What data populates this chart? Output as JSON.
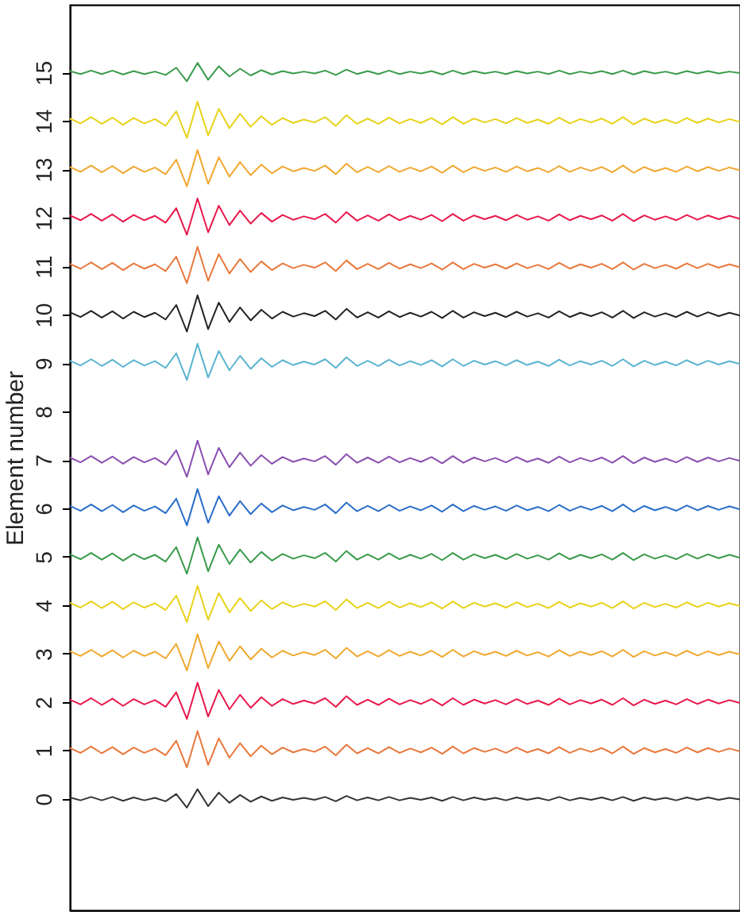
{
  "chart_data": {
    "type": "line",
    "ylabel": "Element number",
    "tick_labels": "y",
    "categories": [
      null,
      null,
      null,
      null,
      null,
      null,
      null,
      null,
      null,
      null,
      null,
      null,
      null,
      null,
      null,
      null,
      null,
      null,
      null,
      null,
      null,
      null,
      null,
      null,
      null,
      null,
      null,
      null,
      null,
      null,
      null,
      null,
      null,
      null,
      null,
      null,
      null,
      null,
      null,
      null,
      null,
      null,
      null,
      null,
      null,
      null,
      null,
      null,
      null,
      null,
      null,
      null,
      null,
      null,
      null,
      null,
      null,
      null,
      null,
      null,
      null,
      null,
      null,
      null
    ],
    "ylim": [
      -2.3,
      16.4
    ],
    "yticks": [
      0,
      1,
      2,
      3,
      4,
      5,
      6,
      7,
      8,
      9,
      10,
      11,
      12,
      13,
      14,
      15
    ],
    "series": [
      {
        "color": "#333333",
        "values": [
          0.03,
          -0.03,
          0.04,
          -0.03,
          0.04,
          -0.04,
          0.03,
          -0.03,
          0.02,
          -0.05,
          0.1,
          -0.18,
          0.2,
          -0.15,
          0.13,
          -0.08,
          0.08,
          -0.06,
          0.05,
          -0.04,
          0.03,
          -0.02,
          0.02,
          -0.02,
          0.04,
          -0.05,
          0.06,
          -0.03,
          0.03,
          -0.03,
          0.04,
          -0.03,
          0.02,
          -0.02,
          0.03,
          -0.04,
          0.04,
          -0.03,
          0.03,
          -0.02,
          0.02,
          -0.03,
          0.03,
          -0.02,
          0.02,
          -0.03,
          0.04,
          -0.03,
          0.02,
          -0.02,
          0.03,
          -0.03,
          0.04,
          -0.04,
          0.03,
          -0.02,
          0.02,
          -0.03,
          0.03,
          -0.02,
          0.03,
          -0.02,
          0.02,
          -0.01
        ]
      },
      {
        "color": "#e8783c",
        "values": [
          1.05,
          0.95,
          1.08,
          0.94,
          1.07,
          0.92,
          1.06,
          0.95,
          1.04,
          0.9,
          1.2,
          0.65,
          1.4,
          0.7,
          1.25,
          0.85,
          1.15,
          0.88,
          1.1,
          0.92,
          1.06,
          0.96,
          1.03,
          0.97,
          1.08,
          0.9,
          1.12,
          0.94,
          1.05,
          0.94,
          1.07,
          0.95,
          1.04,
          0.96,
          1.06,
          0.93,
          1.08,
          0.94,
          1.05,
          0.97,
          1.04,
          0.95,
          1.06,
          0.96,
          1.03,
          0.94,
          1.07,
          0.95,
          1.04,
          0.97,
          1.05,
          0.94,
          1.08,
          0.93,
          1.05,
          0.96,
          1.03,
          0.95,
          1.06,
          0.96,
          1.05,
          0.97,
          1.04,
          0.98
        ]
      },
      {
        "color": "#e8194b",
        "values": [
          2.05,
          1.95,
          2.08,
          1.94,
          2.07,
          1.92,
          2.06,
          1.95,
          2.04,
          1.9,
          2.2,
          1.65,
          2.4,
          1.7,
          2.25,
          1.85,
          2.15,
          1.88,
          2.1,
          1.92,
          2.06,
          1.96,
          2.03,
          1.97,
          2.08,
          1.9,
          2.12,
          1.94,
          2.05,
          1.94,
          2.07,
          1.95,
          2.04,
          1.96,
          2.06,
          1.93,
          2.08,
          1.94,
          2.05,
          1.97,
          2.04,
          1.95,
          2.06,
          1.96,
          2.03,
          1.94,
          2.07,
          1.95,
          2.04,
          1.97,
          2.05,
          1.94,
          2.08,
          1.93,
          2.05,
          1.96,
          2.03,
          1.95,
          2.06,
          1.96,
          2.05,
          1.97,
          2.04,
          1.98
        ]
      },
      {
        "color": "#f0a830",
        "values": [
          3.05,
          2.95,
          3.08,
          2.94,
          3.07,
          2.92,
          3.06,
          2.95,
          3.04,
          2.9,
          3.2,
          2.65,
          3.4,
          2.7,
          3.25,
          2.85,
          3.15,
          2.88,
          3.1,
          2.92,
          3.06,
          2.96,
          3.03,
          2.97,
          3.08,
          2.9,
          3.12,
          2.94,
          3.05,
          2.94,
          3.07,
          2.95,
          3.04,
          2.96,
          3.06,
          2.93,
          3.08,
          2.94,
          3.05,
          2.97,
          3.04,
          2.95,
          3.06,
          2.96,
          3.03,
          2.94,
          3.07,
          2.95,
          3.04,
          2.97,
          3.05,
          2.94,
          3.08,
          2.93,
          3.05,
          2.96,
          3.03,
          2.95,
          3.06,
          2.96,
          3.05,
          2.97,
          3.04,
          2.98
        ]
      },
      {
        "color": "#e8d21a",
        "values": [
          4.05,
          3.95,
          4.08,
          3.94,
          4.07,
          3.92,
          4.06,
          3.95,
          4.04,
          3.9,
          4.2,
          3.65,
          4.4,
          3.7,
          4.25,
          3.85,
          4.15,
          3.88,
          4.1,
          3.92,
          4.06,
          3.96,
          4.03,
          3.97,
          4.08,
          3.9,
          4.12,
          3.94,
          4.05,
          3.94,
          4.07,
          3.95,
          4.04,
          3.96,
          4.06,
          3.93,
          4.08,
          3.94,
          4.05,
          3.97,
          4.04,
          3.95,
          4.06,
          3.96,
          4.03,
          3.94,
          4.07,
          3.95,
          4.04,
          3.97,
          4.05,
          3.94,
          4.08,
          3.93,
          4.05,
          3.96,
          4.03,
          3.95,
          4.06,
          3.96,
          4.05,
          3.97,
          4.04,
          3.98
        ]
      },
      {
        "color": "#3a9a4a",
        "values": [
          5.05,
          4.95,
          5.08,
          4.94,
          5.07,
          4.92,
          5.06,
          4.95,
          5.04,
          4.9,
          5.2,
          4.65,
          5.4,
          4.7,
          5.25,
          4.85,
          5.15,
          4.88,
          5.1,
          4.92,
          5.06,
          4.96,
          5.03,
          4.97,
          5.08,
          4.9,
          5.12,
          4.94,
          5.05,
          4.94,
          5.07,
          4.95,
          5.04,
          4.96,
          5.06,
          4.93,
          5.08,
          4.94,
          5.05,
          4.97,
          5.04,
          4.95,
          5.06,
          4.96,
          5.03,
          4.94,
          5.07,
          4.95,
          5.04,
          4.97,
          5.05,
          4.94,
          5.08,
          4.93,
          5.05,
          4.96,
          5.03,
          4.95,
          5.06,
          4.96,
          5.05,
          4.97,
          5.04,
          4.98
        ]
      },
      {
        "color": "#2a6ec8",
        "values": [
          6.05,
          5.95,
          6.08,
          5.94,
          6.07,
          5.92,
          6.06,
          5.95,
          6.04,
          5.9,
          6.2,
          5.65,
          6.4,
          5.7,
          6.25,
          5.85,
          6.15,
          5.88,
          6.1,
          5.92,
          6.06,
          5.96,
          6.03,
          5.97,
          6.08,
          5.9,
          6.12,
          5.94,
          6.05,
          5.94,
          6.07,
          5.95,
          6.04,
          5.96,
          6.06,
          5.93,
          6.08,
          5.94,
          6.05,
          5.97,
          6.04,
          5.95,
          6.06,
          5.96,
          6.03,
          5.94,
          6.07,
          5.95,
          6.04,
          5.97,
          6.05,
          5.94,
          6.08,
          5.93,
          6.05,
          5.96,
          6.03,
          5.95,
          6.06,
          5.96,
          6.05,
          5.97,
          6.04,
          5.98
        ]
      },
      {
        "color": "#8a4fb0",
        "values": [
          7.05,
          6.95,
          7.08,
          6.94,
          7.07,
          6.92,
          7.06,
          6.95,
          7.04,
          6.9,
          7.2,
          6.65,
          7.4,
          6.7,
          7.25,
          6.85,
          7.15,
          6.88,
          7.1,
          6.92,
          7.06,
          6.96,
          7.03,
          6.97,
          7.08,
          6.9,
          7.12,
          6.94,
          7.05,
          6.94,
          7.07,
          6.95,
          7.04,
          6.96,
          7.06,
          6.93,
          7.08,
          6.94,
          7.05,
          6.97,
          7.04,
          6.95,
          7.06,
          6.96,
          7.03,
          6.94,
          7.07,
          6.95,
          7.04,
          6.97,
          7.05,
          6.94,
          7.08,
          6.93,
          7.05,
          6.96,
          7.03,
          6.95,
          7.06,
          6.96,
          7.05,
          6.97,
          7.04,
          6.98
        ]
      },
      {
        "color": "#5ab4d0",
        "values": [
          9.05,
          8.95,
          9.08,
          8.94,
          9.07,
          8.92,
          9.06,
          8.95,
          9.04,
          8.9,
          9.2,
          8.65,
          9.4,
          8.7,
          9.25,
          8.85,
          9.15,
          8.88,
          9.1,
          8.92,
          9.06,
          8.96,
          9.03,
          8.97,
          9.08,
          8.9,
          9.12,
          8.94,
          9.05,
          8.94,
          9.07,
          8.95,
          9.04,
          8.96,
          9.06,
          8.93,
          9.08,
          8.94,
          9.05,
          8.97,
          9.04,
          8.95,
          9.06,
          8.96,
          9.03,
          8.94,
          9.07,
          8.95,
          9.04,
          8.97,
          9.05,
          8.94,
          9.08,
          8.93,
          9.05,
          8.96,
          9.03,
          8.95,
          9.06,
          8.96,
          9.05,
          8.97,
          9.04,
          8.98
        ]
      },
      {
        "color": "#222222",
        "values": [
          10.05,
          9.95,
          10.08,
          9.94,
          10.07,
          9.92,
          10.06,
          9.95,
          10.04,
          9.9,
          10.2,
          9.65,
          10.4,
          9.7,
          10.25,
          9.85,
          10.15,
          9.88,
          10.1,
          9.92,
          10.06,
          9.96,
          10.03,
          9.97,
          10.08,
          9.9,
          10.12,
          9.94,
          10.05,
          9.94,
          10.07,
          9.95,
          10.04,
          9.96,
          10.06,
          9.93,
          10.08,
          9.94,
          10.05,
          9.97,
          10.04,
          9.95,
          10.06,
          9.96,
          10.03,
          9.94,
          10.07,
          9.95,
          10.04,
          9.97,
          10.05,
          9.94,
          10.08,
          9.93,
          10.05,
          9.96,
          10.03,
          9.95,
          10.06,
          9.96,
          10.05,
          9.97,
          10.04,
          9.98
        ]
      },
      {
        "color": "#e8783c",
        "values": [
          11.05,
          10.95,
          11.08,
          10.94,
          11.07,
          10.92,
          11.06,
          10.95,
          11.04,
          10.9,
          11.2,
          10.65,
          11.4,
          10.7,
          11.25,
          10.85,
          11.15,
          10.88,
          11.1,
          10.92,
          11.06,
          10.96,
          11.03,
          10.97,
          11.08,
          10.9,
          11.12,
          10.94,
          11.05,
          10.94,
          11.07,
          10.95,
          11.04,
          10.96,
          11.06,
          10.93,
          11.08,
          10.94,
          11.05,
          10.97,
          11.04,
          10.95,
          11.06,
          10.96,
          11.03,
          10.94,
          11.07,
          10.95,
          11.04,
          10.97,
          11.05,
          10.94,
          11.08,
          10.93,
          11.05,
          10.96,
          11.03,
          10.95,
          11.06,
          10.96,
          11.05,
          10.97,
          11.04,
          10.98
        ]
      },
      {
        "color": "#e8194b",
        "values": [
          12.05,
          11.95,
          12.08,
          11.94,
          12.07,
          11.92,
          12.06,
          11.95,
          12.04,
          11.9,
          12.2,
          11.65,
          12.4,
          11.7,
          12.25,
          11.85,
          12.15,
          11.88,
          12.1,
          11.92,
          12.06,
          11.96,
          12.03,
          11.97,
          12.08,
          11.9,
          12.12,
          11.94,
          12.05,
          11.94,
          12.07,
          11.95,
          12.04,
          11.96,
          12.06,
          11.93,
          12.08,
          11.94,
          12.05,
          11.97,
          12.04,
          11.95,
          12.06,
          11.96,
          12.03,
          11.94,
          12.07,
          11.95,
          12.04,
          11.97,
          12.05,
          11.94,
          12.08,
          11.93,
          12.05,
          11.96,
          12.03,
          11.95,
          12.06,
          11.96,
          12.05,
          11.97,
          12.04,
          11.98
        ]
      },
      {
        "color": "#f0a830",
        "values": [
          13.05,
          12.95,
          13.08,
          12.94,
          13.07,
          12.92,
          13.06,
          12.95,
          13.04,
          12.9,
          13.2,
          12.65,
          13.4,
          12.7,
          13.25,
          12.85,
          13.15,
          12.88,
          13.1,
          12.92,
          13.06,
          12.96,
          13.03,
          12.97,
          13.08,
          12.9,
          13.12,
          12.94,
          13.05,
          12.94,
          13.07,
          12.95,
          13.04,
          12.96,
          13.06,
          12.93,
          13.08,
          12.94,
          13.05,
          12.97,
          13.04,
          12.95,
          13.06,
          12.96,
          13.03,
          12.94,
          13.07,
          12.95,
          13.04,
          12.97,
          13.05,
          12.94,
          13.08,
          12.93,
          13.05,
          12.96,
          13.03,
          12.95,
          13.06,
          12.96,
          13.05,
          12.97,
          13.04,
          12.98
        ]
      },
      {
        "color": "#e8d21a",
        "values": [
          14.05,
          13.95,
          14.08,
          13.94,
          14.07,
          13.92,
          14.06,
          13.95,
          14.04,
          13.9,
          14.2,
          13.65,
          14.4,
          13.7,
          14.25,
          13.85,
          14.15,
          13.88,
          14.1,
          13.92,
          14.06,
          13.96,
          14.03,
          13.97,
          14.08,
          13.9,
          14.12,
          13.94,
          14.05,
          13.94,
          14.07,
          13.95,
          14.04,
          13.96,
          14.06,
          13.93,
          14.08,
          13.94,
          14.05,
          13.97,
          14.04,
          13.95,
          14.06,
          13.96,
          14.03,
          13.94,
          14.07,
          13.95,
          14.04,
          13.97,
          14.05,
          13.94,
          14.08,
          13.93,
          14.05,
          13.96,
          14.03,
          13.95,
          14.06,
          13.96,
          14.05,
          13.97,
          14.04,
          13.98
        ]
      },
      {
        "color": "#3a9a4a",
        "values": [
          15.03,
          14.97,
          15.04,
          14.97,
          15.04,
          14.96,
          15.03,
          14.97,
          15.02,
          14.95,
          15.1,
          14.82,
          15.2,
          14.85,
          15.13,
          14.92,
          15.08,
          14.94,
          15.05,
          14.96,
          15.03,
          14.98,
          15.02,
          14.98,
          15.04,
          14.95,
          15.06,
          14.97,
          15.03,
          14.97,
          15.04,
          14.97,
          15.02,
          14.98,
          15.03,
          14.96,
          15.04,
          14.97,
          15.03,
          14.98,
          15.02,
          14.97,
          15.03,
          14.98,
          15.02,
          14.97,
          15.04,
          14.97,
          15.02,
          14.98,
          15.03,
          14.97,
          15.04,
          14.96,
          15.03,
          14.98,
          15.02,
          14.97,
          15.03,
          14.98,
          15.03,
          14.98,
          15.02,
          14.99
        ]
      }
    ]
  }
}
